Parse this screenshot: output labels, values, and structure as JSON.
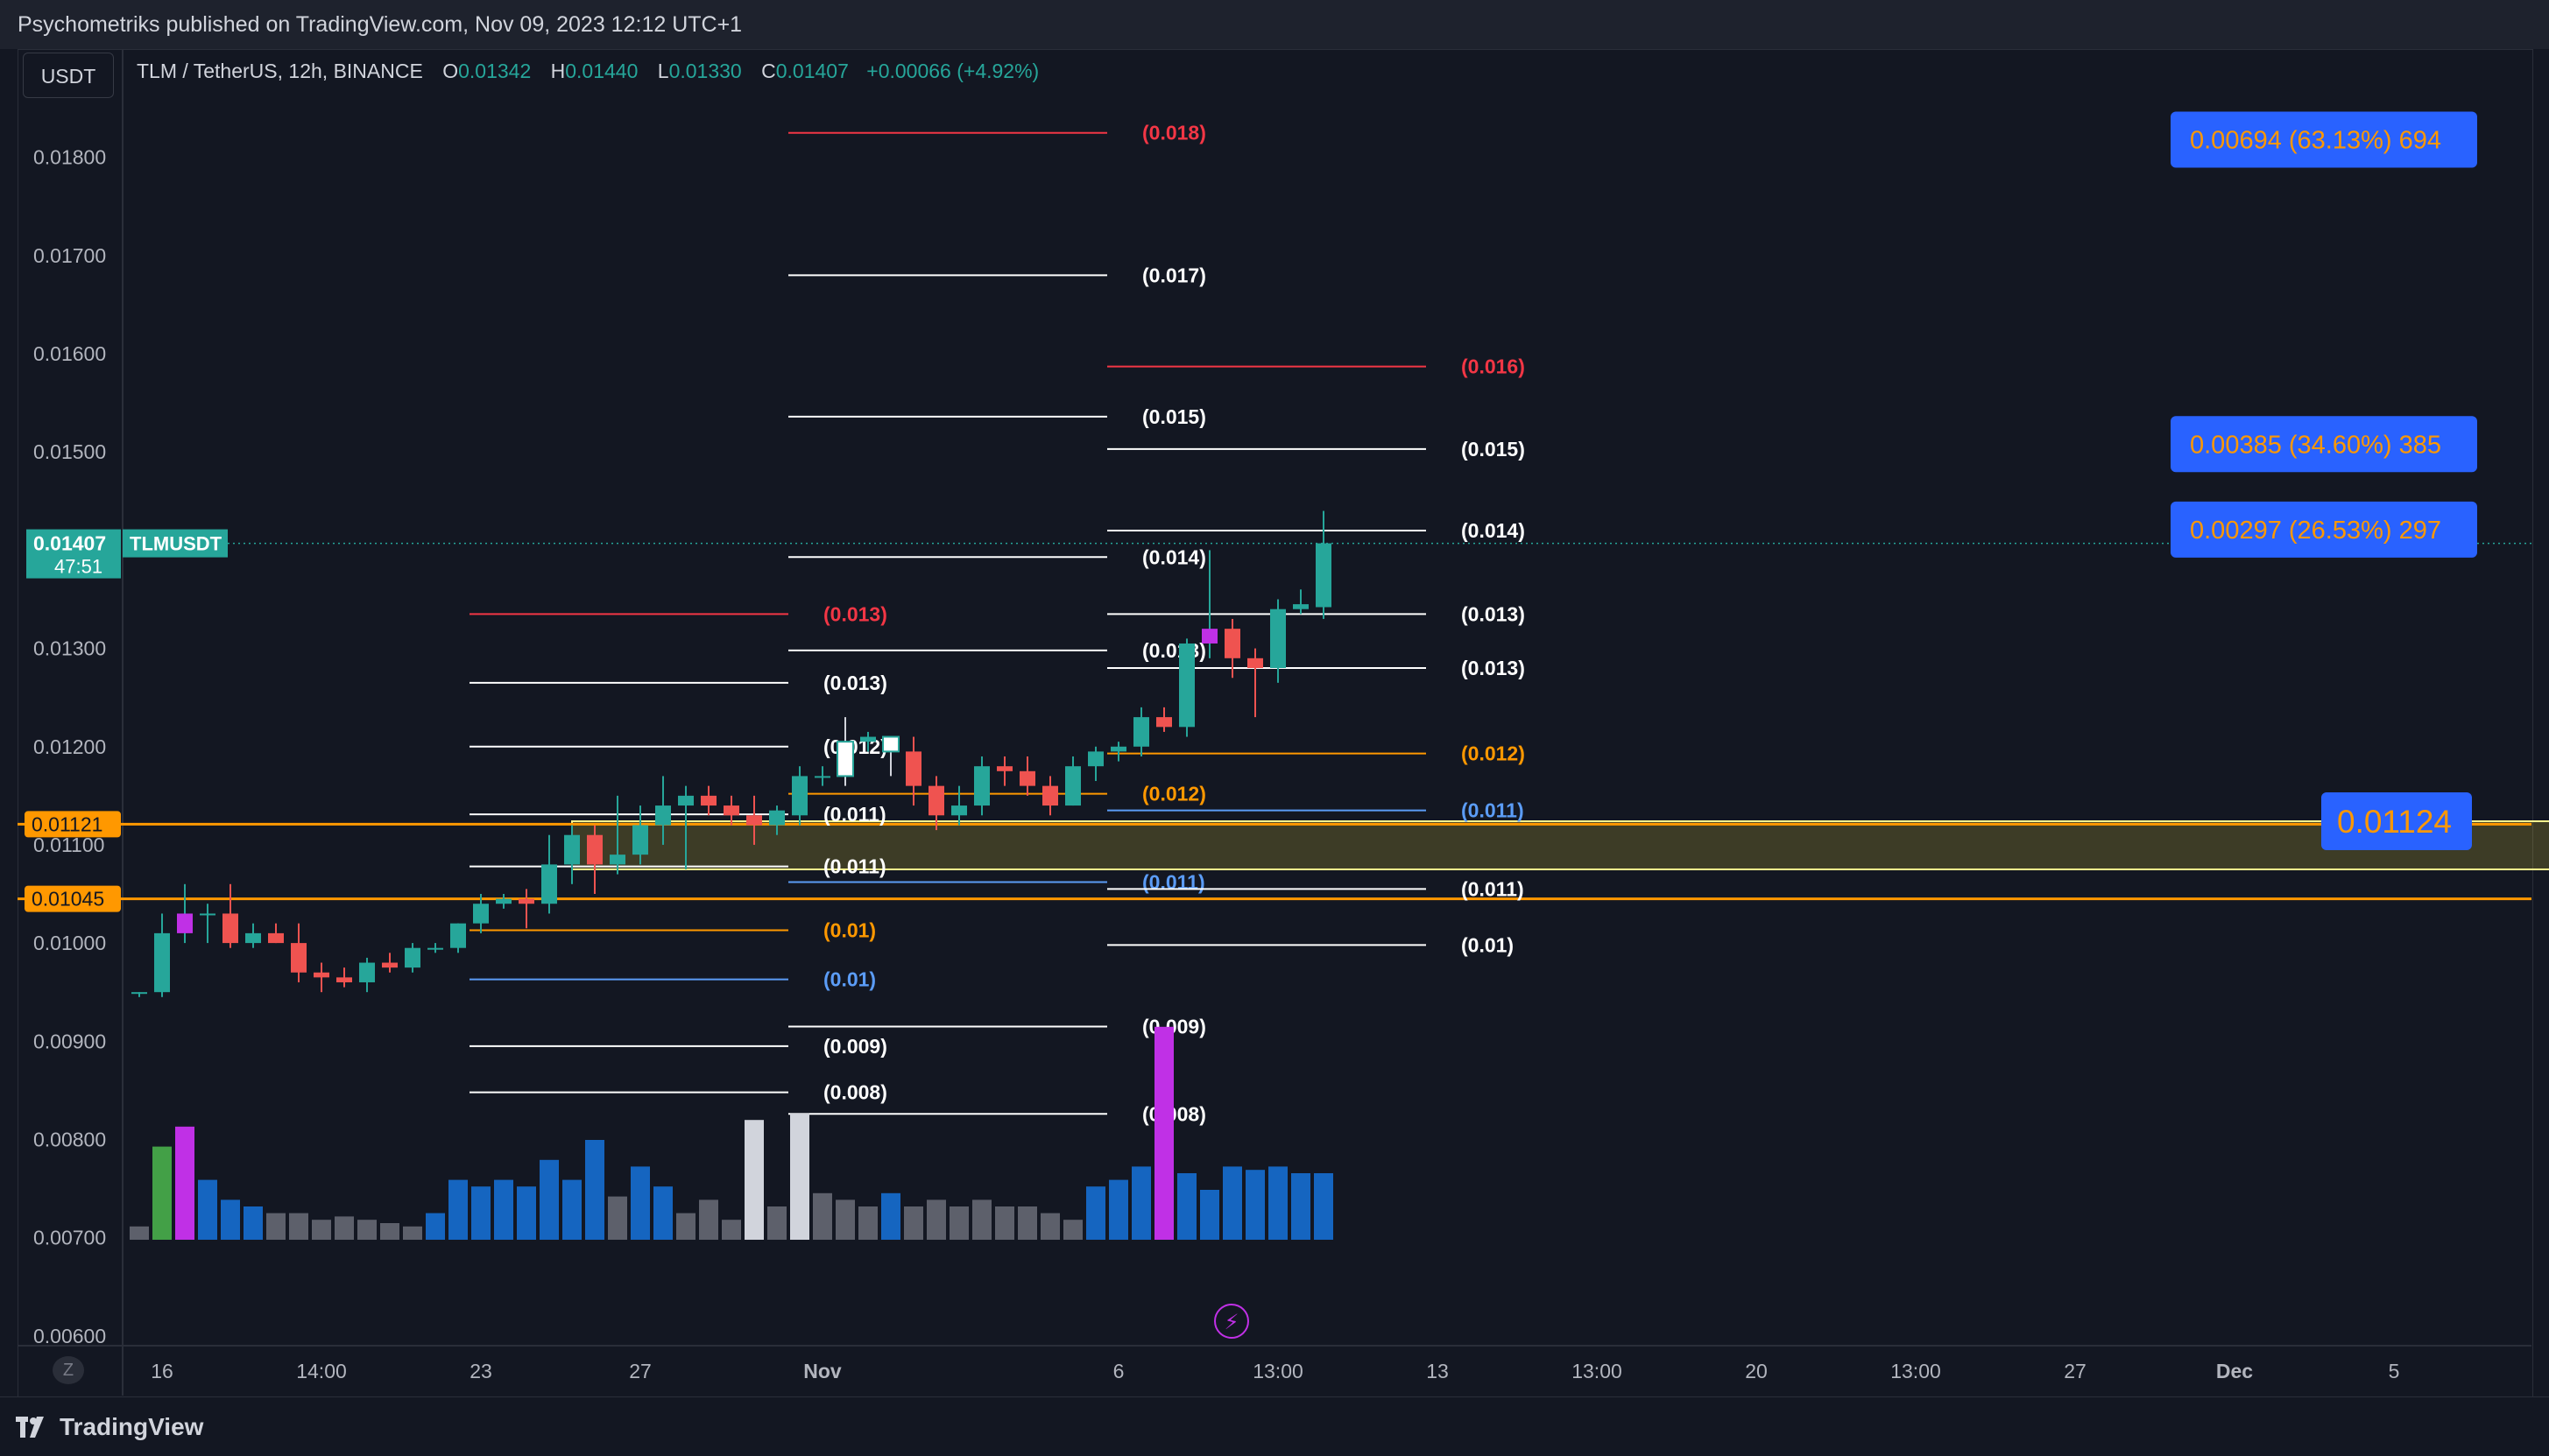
{
  "header": {
    "published_text": "Psychometriks published on TradingView.com, Nov 09, 2023 12:12 UTC+1"
  },
  "toolbar": {
    "currency": "USDT",
    "zoom_key": "Z"
  },
  "legend": {
    "symbol_text": "TLM / TetherUS, 12h, BINANCE",
    "o_label": "O",
    "o_value": "0.01342",
    "h_label": "H",
    "h_value": "0.01440",
    "l_label": "L",
    "l_value": "0.01330",
    "c_label": "C",
    "c_value": "0.01407",
    "change": "+0.00066 (+4.92%)"
  },
  "footer": {
    "brand": "TradingView"
  },
  "colors": {
    "up": "#26a69a",
    "down": "#ef5350",
    "orange": "#ff9800",
    "yellow": "#fffb8f",
    "fib_red": "#f23645",
    "fib_white": "#ffffff",
    "fib_orange": "#ff9800",
    "fib_blue": "#5b9cf6",
    "badge_blue": "#2962ff",
    "vol_blue": "#1565c0",
    "vol_grey": "#5d606b",
    "magenta": "#c030e6"
  },
  "chart_data": {
    "type": "candlestick",
    "symbol": "TLMUSDT",
    "interval": "12h",
    "y_range": [
      0.0059,
      0.0188
    ],
    "y_ticks": [
      "0.01800",
      "0.01700",
      "0.01600",
      "0.01500",
      "0.01300",
      "0.01200",
      "0.01100",
      "0.01000",
      "0.00900",
      "0.00800",
      "0.00700",
      "0.00600"
    ],
    "x_ticks": [
      "16",
      "14:00",
      "23",
      "27",
      "Nov",
      "6",
      "13:00",
      "13",
      "13:00",
      "20",
      "13:00",
      "27",
      "Dec",
      "5"
    ],
    "last_price": {
      "value": "0.01407",
      "countdown": "47:51",
      "label": "TLMUSDT"
    },
    "candles": [
      [
        0.0095,
        0.0095,
        0.00945,
        0.0095
      ],
      [
        0.0095,
        0.0103,
        0.00945,
        0.0101
      ],
      [
        0.0101,
        0.0106,
        0.01,
        0.0103
      ],
      [
        0.0103,
        0.0104,
        0.01,
        0.0103
      ],
      [
        0.0103,
        0.0106,
        0.00995,
        0.01
      ],
      [
        0.01,
        0.0102,
        0.00995,
        0.0101
      ],
      [
        0.0101,
        0.0102,
        0.01,
        0.01
      ],
      [
        0.01,
        0.0102,
        0.0096,
        0.0097
      ],
      [
        0.0097,
        0.0098,
        0.0095,
        0.00965
      ],
      [
        0.00965,
        0.00975,
        0.00955,
        0.0096
      ],
      [
        0.0096,
        0.00985,
        0.0095,
        0.0098
      ],
      [
        0.0098,
        0.0099,
        0.0097,
        0.00975
      ],
      [
        0.00975,
        0.01,
        0.0097,
        0.00995
      ],
      [
        0.00995,
        0.01,
        0.0099,
        0.00995
      ],
      [
        0.00995,
        0.0102,
        0.0099,
        0.0102
      ],
      [
        0.0102,
        0.0105,
        0.0101,
        0.0104
      ],
      [
        0.0104,
        0.0105,
        0.01035,
        0.01045
      ],
      [
        0.01045,
        0.01055,
        0.01015,
        0.0104
      ],
      [
        0.0104,
        0.0111,
        0.0103,
        0.0108
      ],
      [
        0.0108,
        0.0112,
        0.0106,
        0.0111
      ],
      [
        0.0111,
        0.0112,
        0.0105,
        0.0108
      ],
      [
        0.0108,
        0.0115,
        0.0107,
        0.0109
      ],
      [
        0.0109,
        0.0114,
        0.0108,
        0.0112
      ],
      [
        0.0112,
        0.0117,
        0.011,
        0.0114
      ],
      [
        0.0114,
        0.0116,
        0.01075,
        0.0115
      ],
      [
        0.0115,
        0.0116,
        0.0113,
        0.0114
      ],
      [
        0.0114,
        0.0115,
        0.0112,
        0.0113
      ],
      [
        0.0113,
        0.0115,
        0.011,
        0.0112
      ],
      [
        0.0112,
        0.0114,
        0.0111,
        0.01135
      ],
      [
        0.0113,
        0.0118,
        0.0112,
        0.0117
      ],
      [
        0.0117,
        0.0118,
        0.0116,
        0.0117
      ],
      [
        0.0117,
        0.0123,
        0.0116,
        0.01205
      ],
      [
        0.01205,
        0.01215,
        0.01195,
        0.0121
      ],
      [
        0.0121,
        0.0121,
        0.0117,
        0.01195
      ],
      [
        0.01195,
        0.0121,
        0.0114,
        0.0116
      ],
      [
        0.0116,
        0.0117,
        0.01115,
        0.0113
      ],
      [
        0.0113,
        0.0116,
        0.0112,
        0.0114
      ],
      [
        0.0114,
        0.0119,
        0.0113,
        0.0118
      ],
      [
        0.0118,
        0.0119,
        0.0116,
        0.01175
      ],
      [
        0.01175,
        0.0119,
        0.0115,
        0.0116
      ],
      [
        0.0116,
        0.0117,
        0.0113,
        0.0114
      ],
      [
        0.0114,
        0.0119,
        0.0114,
        0.0118
      ],
      [
        0.0118,
        0.012,
        0.01165,
        0.01195
      ],
      [
        0.01195,
        0.01205,
        0.01185,
        0.012
      ],
      [
        0.012,
        0.0124,
        0.0119,
        0.0123
      ],
      [
        0.0123,
        0.0124,
        0.01215,
        0.0122
      ],
      [
        0.0122,
        0.0131,
        0.0121,
        0.01305
      ],
      [
        0.01305,
        0.014,
        0.0129,
        0.0132
      ],
      [
        0.0132,
        0.0133,
        0.0127,
        0.0129
      ],
      [
        0.0129,
        0.013,
        0.0123,
        0.0128
      ],
      [
        0.0128,
        0.0135,
        0.01265,
        0.0134
      ],
      [
        0.0134,
        0.0136,
        0.01335,
        0.01345
      ],
      [
        0.01342,
        0.0144,
        0.0133,
        0.01407
      ]
    ],
    "candle_hollow_indices": [
      31,
      33
    ],
    "candle_magenta_indices": [
      2,
      47
    ],
    "volumes": [
      0.2,
      1.4,
      1.7,
      0.9,
      0.6,
      0.5,
      0.4,
      0.4,
      0.3,
      0.35,
      0.3,
      0.25,
      0.2,
      0.4,
      0.9,
      0.8,
      0.9,
      0.8,
      1.2,
      0.9,
      1.5,
      0.65,
      1.1,
      0.8,
      0.4,
      0.6,
      0.3,
      1.8,
      0.5,
      1.9,
      0.7,
      0.6,
      0.5,
      0.7,
      0.5,
      0.6,
      0.5,
      0.6,
      0.5,
      0.5,
      0.4,
      0.3,
      0.8,
      0.9,
      1.1,
      3.2,
      1.0,
      0.75,
      1.1,
      1.05,
      1.1,
      1.0,
      1.0
    ],
    "volume_colors": [
      "grey",
      "green",
      "magenta",
      "blue",
      "blue",
      "blue",
      "grey",
      "grey",
      "grey",
      "grey",
      "grey",
      "grey",
      "grey",
      "blue",
      "blue",
      "blue",
      "blue",
      "blue",
      "blue",
      "blue",
      "blue",
      "grey",
      "blue",
      "blue",
      "grey",
      "grey",
      "grey",
      "white",
      "grey",
      "white",
      "grey",
      "grey",
      "grey",
      "blue",
      "grey",
      "grey",
      "grey",
      "grey",
      "grey",
      "grey",
      "grey",
      "grey",
      "blue",
      "blue",
      "blue",
      "magenta",
      "blue",
      "blue",
      "blue",
      "blue",
      "blue",
      "blue",
      "blue"
    ],
    "fib_levels": [
      {
        "label": "(0.018)",
        "price": 0.01825,
        "color": "red",
        "bar_from": 29,
        "bar_to": 43
      },
      {
        "label": "(0.017)",
        "price": 0.0168,
        "color": "white",
        "bar_from": 29,
        "bar_to": 43
      },
      {
        "label": "(0.016)",
        "price": 0.01587,
        "color": "red",
        "bar_from": 43,
        "bar_to": 57
      },
      {
        "label": "(0.015)",
        "price": 0.01536,
        "color": "white",
        "bar_from": 29,
        "bar_to": 43
      },
      {
        "label": "(0.015)",
        "price": 0.01503,
        "color": "white",
        "bar_from": 43,
        "bar_to": 57
      },
      {
        "label": "(0.014)",
        "price": 0.0142,
        "color": "white",
        "bar_from": 43,
        "bar_to": 57
      },
      {
        "label": "(0.014)",
        "price": 0.01393,
        "color": "white",
        "bar_from": 29,
        "bar_to": 43
      },
      {
        "label": "(0.013)",
        "price": 0.01335,
        "color": "red",
        "bar_from": 15,
        "bar_to": 29
      },
      {
        "label": "(0.013)",
        "price": 0.01335,
        "color": "white",
        "bar_from": 43,
        "bar_to": 57
      },
      {
        "label": "(0.013)",
        "price": 0.01298,
        "color": "white",
        "bar_from": 29,
        "bar_to": 43
      },
      {
        "label": "(0.013)",
        "price": 0.0128,
        "color": "white",
        "bar_from": 43,
        "bar_to": 57
      },
      {
        "label": "(0.013)",
        "price": 0.01265,
        "color": "white",
        "bar_from": 15,
        "bar_to": 29
      },
      {
        "label": "(0.012)",
        "price": 0.012,
        "color": "white",
        "bar_from": 15,
        "bar_to": 29
      },
      {
        "label": "(0.012)",
        "price": 0.01193,
        "color": "orange",
        "bar_from": 43,
        "bar_to": 57
      },
      {
        "label": "(0.012)",
        "price": 0.01152,
        "color": "orange",
        "bar_from": 29,
        "bar_to": 43
      },
      {
        "label": "(0.011)",
        "price": 0.01135,
        "color": "blue",
        "bar_from": 43,
        "bar_to": 57
      },
      {
        "label": "(0.011)",
        "price": 0.01131,
        "color": "white",
        "bar_from": 15,
        "bar_to": 29
      },
      {
        "label": "(0.011)",
        "price": 0.01078,
        "color": "white",
        "bar_from": 15,
        "bar_to": 29
      },
      {
        "label": "(0.011)",
        "price": 0.01062,
        "color": "blue",
        "bar_from": 29,
        "bar_to": 43
      },
      {
        "label": "(0.011)",
        "price": 0.01055,
        "color": "white",
        "bar_from": 43,
        "bar_to": 57
      },
      {
        "label": "(0.01)",
        "price": 0.01013,
        "color": "orange",
        "bar_from": 15,
        "bar_to": 29
      },
      {
        "label": "(0.01)",
        "price": 0.00998,
        "color": "white",
        "bar_from": 43,
        "bar_to": 57
      },
      {
        "label": "(0.01)",
        "price": 0.00963,
        "color": "blue",
        "bar_from": 15,
        "bar_to": 29
      },
      {
        "label": "(0.009)",
        "price": 0.00915,
        "color": "white",
        "bar_from": 29,
        "bar_to": 43
      },
      {
        "label": "(0.009)",
        "price": 0.00895,
        "color": "white",
        "bar_from": 15,
        "bar_to": 29
      },
      {
        "label": "(0.008)",
        "price": 0.00848,
        "color": "white",
        "bar_from": 15,
        "bar_to": 29
      },
      {
        "label": "(0.008)",
        "price": 0.00826,
        "color": "white",
        "bar_from": 29,
        "bar_to": 43
      }
    ],
    "horizontal_lines": [
      {
        "price": 0.01121,
        "label": "0.01121"
      },
      {
        "price": 0.01045,
        "label": "0.01045"
      }
    ],
    "zone": {
      "top": 0.01124,
      "bottom": 0.01075,
      "bar_from": 19,
      "bar_to": 133
    },
    "zone_label": "0.01124",
    "targets": [
      {
        "price": 0.01818,
        "label": "0.00694 (63.13%) 694"
      },
      {
        "price": 0.01508,
        "label": "0.00385 (34.60%) 385"
      },
      {
        "price": 0.01421,
        "label": "0.00297 (26.53%) 297"
      }
    ],
    "x_tick_bars": [
      1,
      8,
      15,
      22,
      30,
      43,
      50,
      57,
      64,
      71,
      78,
      85,
      92,
      99
    ]
  }
}
